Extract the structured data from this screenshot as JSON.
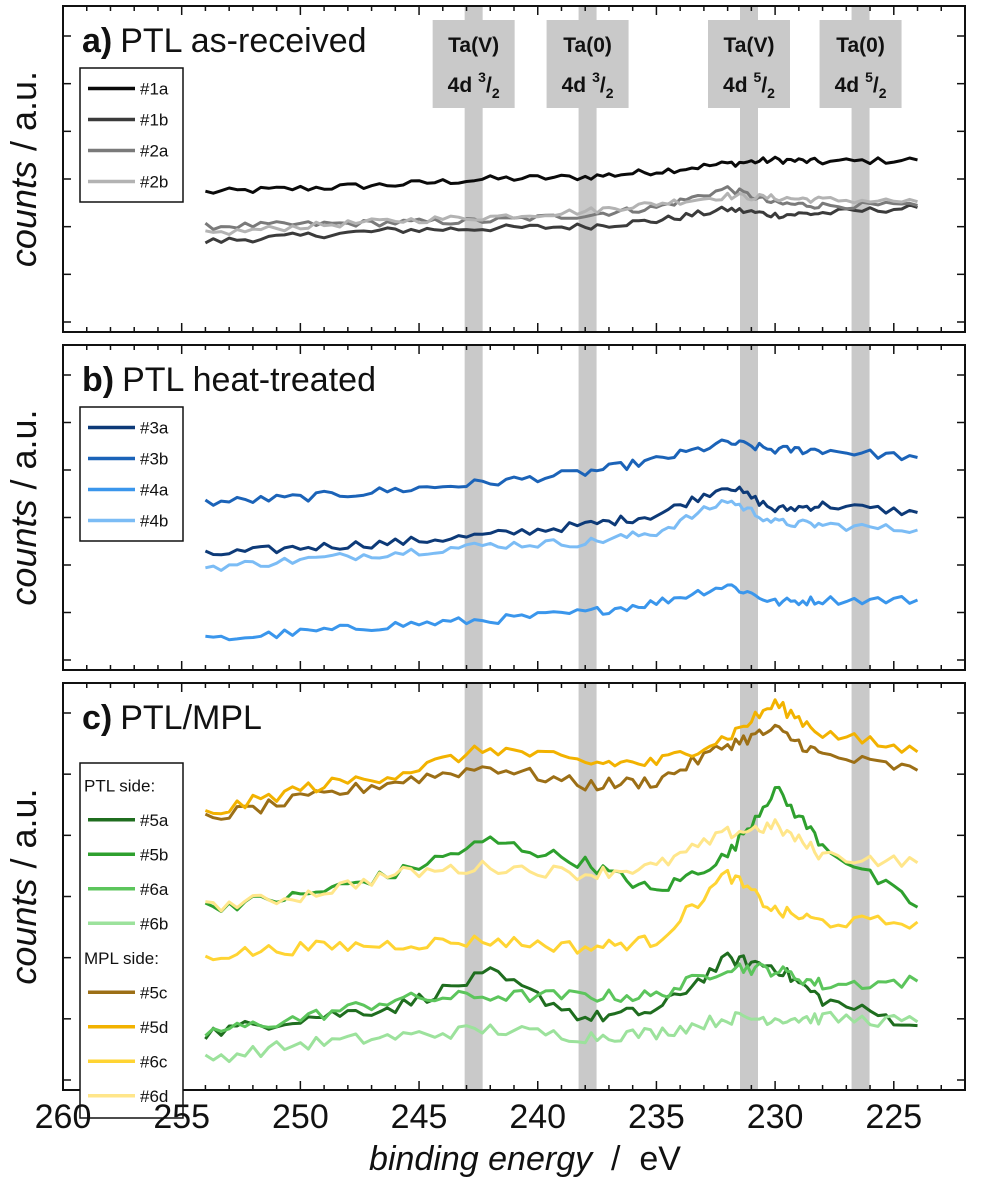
{
  "chart_data": {
    "type": "line",
    "x_axis": {
      "label_italic": "binding energy",
      "label_sep": "  /  ",
      "label_unit": "eV",
      "ticks": [
        260,
        255,
        250,
        245,
        240,
        235,
        230,
        225
      ],
      "xlim": [
        260,
        222
      ],
      "reversed": true
    },
    "ylabel": {
      "italic": "counts",
      "sep": "  /  ",
      "unit": "a.u."
    },
    "bands": [
      {
        "energy": 242.7,
        "label_top": "Ta(V)",
        "label_bottom": "4d",
        "sup": "3",
        "sub": "2"
      },
      {
        "energy": 237.9,
        "label_top": "Ta(0)",
        "label_bottom": "4d",
        "sup": "3",
        "sub": "2"
      },
      {
        "energy": 231.1,
        "label_top": "Ta(V)",
        "label_bottom": "4d",
        "sup": "5",
        "sub": "2"
      },
      {
        "energy": 226.4,
        "label_top": "Ta(0)",
        "label_bottom": "4d",
        "sup": "5",
        "sub": "2"
      }
    ],
    "panels": [
      {
        "id": "a",
        "letter": "a)",
        "title": "PTL as-received",
        "ylim": [
          0,
          1
        ],
        "legend": {
          "header_top": null,
          "header_mid": null
        },
        "series": [
          {
            "name": "#1a",
            "color": "#0a0a0a",
            "x": [
              254,
              250,
              246,
              242,
              238,
              235,
              232,
              230,
              228,
              224
            ],
            "y": [
              0.62,
              0.64,
              0.66,
              0.69,
              0.7,
              0.73,
              0.77,
              0.79,
              0.78,
              0.79
            ]
          },
          {
            "name": "#1b",
            "color": "#3b3b3b",
            "x": [
              254,
              250,
              246,
              242,
              238,
              235,
              232,
              230,
              228,
              224
            ],
            "y": [
              0.36,
              0.39,
              0.42,
              0.43,
              0.44,
              0.47,
              0.53,
              0.5,
              0.51,
              0.54
            ]
          },
          {
            "name": "#2a",
            "color": "#7a7a7a",
            "x": [
              254,
              250,
              246,
              242,
              238,
              235,
              232,
              230,
              228,
              224
            ],
            "y": [
              0.44,
              0.45,
              0.46,
              0.47,
              0.5,
              0.54,
              0.64,
              0.56,
              0.55,
              0.55
            ]
          },
          {
            "name": "#2b",
            "color": "#b3b3b3",
            "x": [
              254,
              250,
              246,
              242,
              238,
              235,
              232,
              230,
              228,
              224
            ],
            "y": [
              0.4,
              0.44,
              0.47,
              0.49,
              0.52,
              0.56,
              0.6,
              0.59,
              0.58,
              0.57
            ]
          }
        ]
      },
      {
        "id": "b",
        "letter": "b)",
        "title": "PTL heat-treated",
        "ylim": [
          0,
          1
        ],
        "legend": {
          "header_top": null,
          "header_mid": null
        },
        "series": [
          {
            "name": "#3a",
            "color": "#0d3a78",
            "x": [
              254,
              250,
              246,
              242,
              238,
              235,
              232,
              230,
              228,
              224
            ],
            "y": [
              0.4,
              0.43,
              0.45,
              0.48,
              0.52,
              0.56,
              0.68,
              0.58,
              0.6,
              0.57
            ]
          },
          {
            "name": "#3b",
            "color": "#1b63b8",
            "x": [
              254,
              250,
              246,
              242,
              238,
              235,
              232,
              230,
              228,
              224
            ],
            "y": [
              0.61,
              0.63,
              0.66,
              0.69,
              0.73,
              0.78,
              0.85,
              0.82,
              0.82,
              0.79
            ]
          },
          {
            "name": "#4a",
            "color": "#3a96ec",
            "x": [
              254,
              250,
              246,
              242,
              238,
              235,
              232,
              230,
              228,
              224
            ],
            "y": [
              0.06,
              0.09,
              0.12,
              0.14,
              0.17,
              0.21,
              0.28,
              0.21,
              0.22,
              0.22
            ]
          },
          {
            "name": "#4b",
            "color": "#7bbcf5",
            "x": [
              254,
              250,
              246,
              242,
              238,
              235,
              232,
              230,
              228,
              224
            ],
            "y": [
              0.35,
              0.38,
              0.41,
              0.44,
              0.45,
              0.49,
              0.62,
              0.53,
              0.52,
              0.5
            ]
          }
        ]
      },
      {
        "id": "c",
        "letter": "c)",
        "title": "PTL/MPL",
        "ylim": [
          0,
          1
        ],
        "legend": {
          "header_top": "PTL side:",
          "header_mid": "MPL side:"
        },
        "series": [
          {
            "name": "#5a",
            "color": "#1f6d1f",
            "x": [
              254,
              250,
              246,
              242,
              238,
              235,
              232,
              230,
              228,
              224
            ],
            "y": [
              0.1,
              0.14,
              0.17,
              0.26,
              0.14,
              0.16,
              0.3,
              0.28,
              0.19,
              0.12
            ]
          },
          {
            "name": "#5b",
            "color": "#2ea02e",
            "x": [
              254,
              250,
              246,
              242,
              238,
              235,
              232,
              230,
              228,
              224
            ],
            "y": [
              0.44,
              0.47,
              0.53,
              0.62,
              0.56,
              0.48,
              0.58,
              0.76,
              0.61,
              0.44
            ]
          },
          {
            "name": "#6a",
            "color": "#5cc55c",
            "x": [
              254,
              250,
              246,
              242,
              238,
              235,
              232,
              230,
              228,
              224
            ],
            "y": [
              0.1,
              0.14,
              0.19,
              0.2,
              0.2,
              0.2,
              0.28,
              0.27,
              0.23,
              0.24
            ]
          },
          {
            "name": "#6b",
            "color": "#9ce29c",
            "x": [
              254,
              250,
              246,
              242,
              238,
              235,
              232,
              230,
              228,
              224
            ],
            "y": [
              0.03,
              0.07,
              0.09,
              0.11,
              0.09,
              0.1,
              0.14,
              0.14,
              0.14,
              0.13
            ]
          },
          {
            "name": "#5c",
            "color": "#9c6f16",
            "x": [
              254,
              250,
              246,
              242,
              238,
              235,
              232,
              230,
              228,
              224
            ],
            "y": [
              0.68,
              0.73,
              0.78,
              0.82,
              0.77,
              0.78,
              0.88,
              0.92,
              0.85,
              0.81
            ]
          },
          {
            "name": "#5d",
            "color": "#f2b200",
            "x": [
              254,
              250,
              246,
              242,
              238,
              235,
              232,
              230,
              228,
              224
            ],
            "y": [
              0.69,
              0.76,
              0.8,
              0.87,
              0.83,
              0.83,
              0.9,
              0.99,
              0.91,
              0.86
            ]
          },
          {
            "name": "#6c",
            "color": "#ffd433",
            "x": [
              254,
              250,
              246,
              242,
              238,
              235,
              232,
              230,
              228,
              224
            ],
            "y": [
              0.31,
              0.33,
              0.34,
              0.35,
              0.33,
              0.35,
              0.53,
              0.43,
              0.4,
              0.4
            ]
          },
          {
            "name": "#6d",
            "color": "#ffe68a",
            "x": [
              254,
              250,
              246,
              242,
              238,
              235,
              232,
              230,
              228,
              224
            ],
            "y": [
              0.44,
              0.47,
              0.53,
              0.55,
              0.53,
              0.55,
              0.64,
              0.66,
              0.58,
              0.56
            ]
          }
        ]
      }
    ]
  }
}
